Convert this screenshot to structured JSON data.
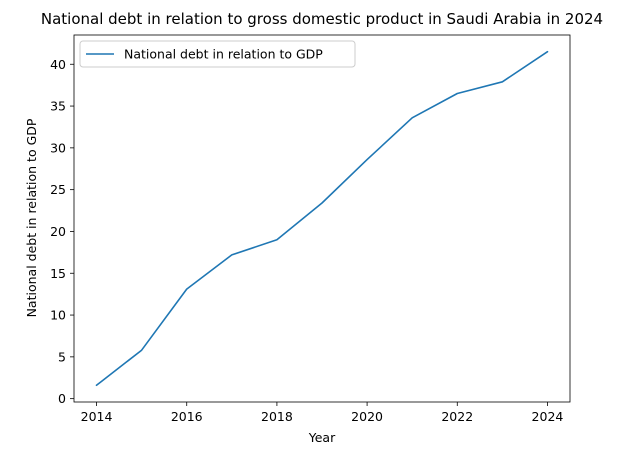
{
  "chart_data": {
    "type": "line",
    "title": "National debt in relation to gross domestic product in Saudi Arabia in 2024",
    "xlabel": "Year",
    "ylabel": "National debt in relation to GDP",
    "x": [
      2014,
      2015,
      2016,
      2017,
      2018,
      2019,
      2020,
      2021,
      2022,
      2023,
      2024
    ],
    "series": [
      {
        "name": "National debt in relation to GDP",
        "values": [
          1.6,
          5.8,
          13.1,
          17.2,
          19.0,
          23.4,
          28.6,
          33.6,
          36.5,
          37.9,
          41.5
        ],
        "color": "#1f77b4"
      }
    ],
    "xticks": [
      2014,
      2016,
      2018,
      2020,
      2022,
      2024
    ],
    "yticks": [
      0,
      5,
      10,
      15,
      20,
      25,
      30,
      35,
      40
    ],
    "xlim": [
      2013.5,
      2024.5
    ],
    "ylim": [
      -0.4,
      43.5
    ],
    "legend_position": "top-left",
    "grid": false
  }
}
